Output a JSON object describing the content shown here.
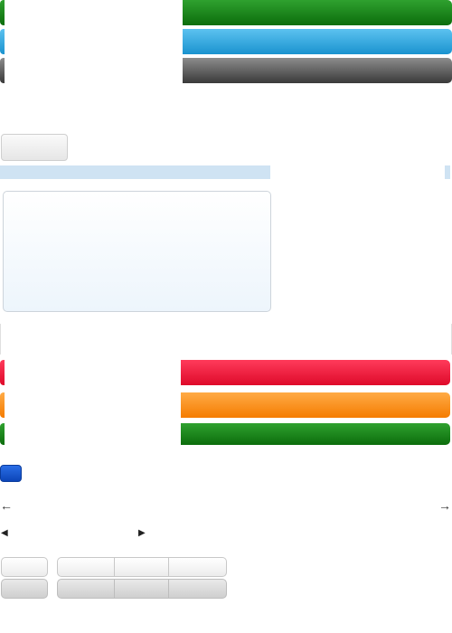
{
  "top_bars": [
    {
      "color_start": "#2fa12f",
      "color_end": "#0c6d0c",
      "fill_fraction": 0.6
    },
    {
      "color_start": "#5cc2f0",
      "color_end": "#1a93cf",
      "fill_fraction": 0.6
    },
    {
      "color_start": "#8c8c8c",
      "color_end": "#3a3a3a",
      "fill_fraction": 0.6
    }
  ],
  "bottom_bars": [
    {
      "color_start": "#ff3b5b",
      "color_end": "#de0a2a",
      "fill_fraction": 0.6
    },
    {
      "color_start": "#ffab46",
      "color_end": "#f57c00",
      "fill_fraction": 0.6
    },
    {
      "color_start": "#2fa12f",
      "color_end": "#0c6d0c",
      "fill_fraction": 0.6
    }
  ],
  "icons": {
    "left_arrow": "arrow-left-icon",
    "right_arrow": "arrow-right-icon",
    "left_triangle": "triangle-left-icon",
    "right_triangle": "triangle-right-icon"
  }
}
